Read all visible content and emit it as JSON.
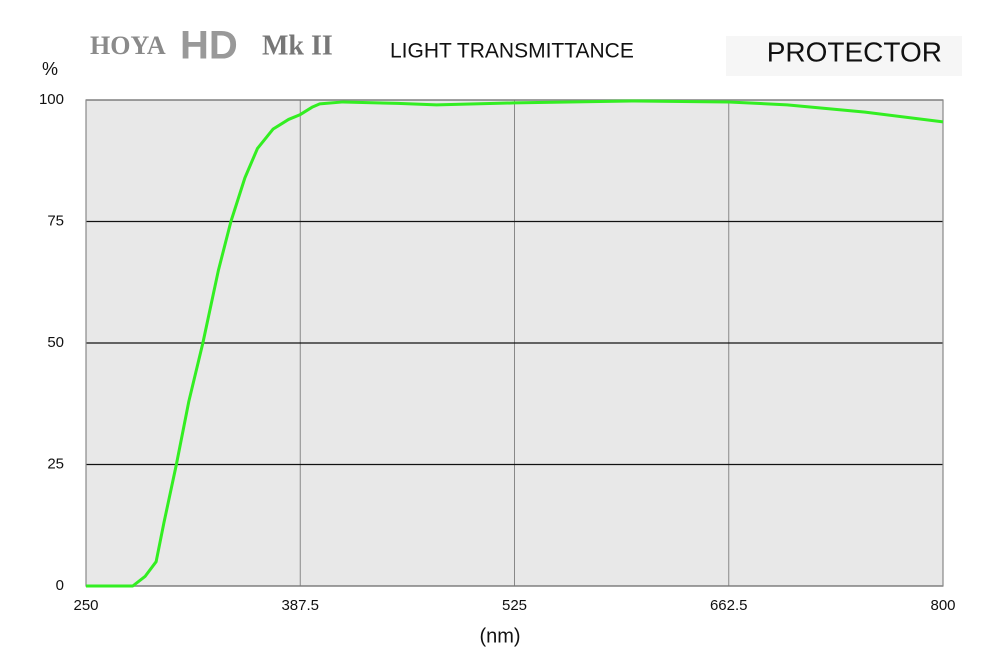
{
  "chart_data": {
    "type": "line",
    "logo": [
      "HOYA",
      "HD",
      "Mk II"
    ],
    "title": "LIGHT TRANSMITTANCE",
    "subtitle": "PROTECTOR",
    "y_label": "%",
    "x_label": "(nm)",
    "x": [
      250,
      280,
      288,
      295,
      300,
      308,
      316,
      325,
      335,
      343,
      352,
      360,
      370,
      380,
      387.5,
      395,
      400,
      415,
      450,
      475,
      525,
      600,
      662.5,
      700,
      750,
      800
    ],
    "values": [
      0,
      0,
      2,
      5,
      13,
      25,
      38,
      50,
      65,
      75,
      84,
      90,
      94,
      96,
      97,
      98.5,
      99.2,
      99.6,
      99.3,
      99,
      99.4,
      99.8,
      99.6,
      99,
      97.5,
      95.5
    ],
    "color": "#33ee22",
    "xlim": [
      250,
      800
    ],
    "xticks": [
      250,
      387.5,
      525,
      662.5,
      800
    ],
    "ylim": [
      0,
      100
    ],
    "yticks": [
      0,
      25,
      50,
      75,
      100
    ],
    "grid": true
  }
}
